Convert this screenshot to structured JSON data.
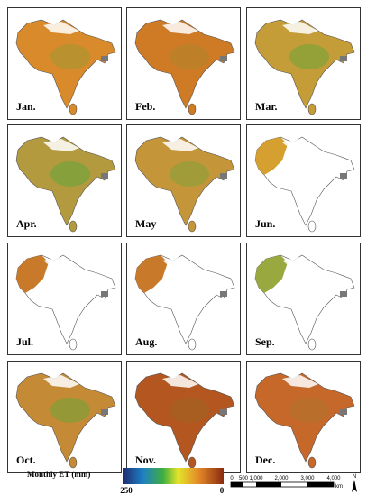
{
  "panels": [
    {
      "label": "Jan."
    },
    {
      "label": "Feb."
    },
    {
      "label": "Mar."
    },
    {
      "label": "Apr."
    },
    {
      "label": "May"
    },
    {
      "label": "Jun."
    },
    {
      "label": "Jul."
    },
    {
      "label": "Aug."
    },
    {
      "label": "Sep."
    },
    {
      "label": "Oct."
    },
    {
      "label": "Nov."
    },
    {
      "label": "Dec."
    }
  ],
  "legend": {
    "title": "Monthly ET (mm)",
    "max_label": "250",
    "min_label": "0"
  },
  "scale_bar": {
    "labels": [
      "0",
      "500",
      "1,000",
      "2,000",
      "3,000",
      "4,000"
    ],
    "unit": "km"
  },
  "north_label": "N"
}
